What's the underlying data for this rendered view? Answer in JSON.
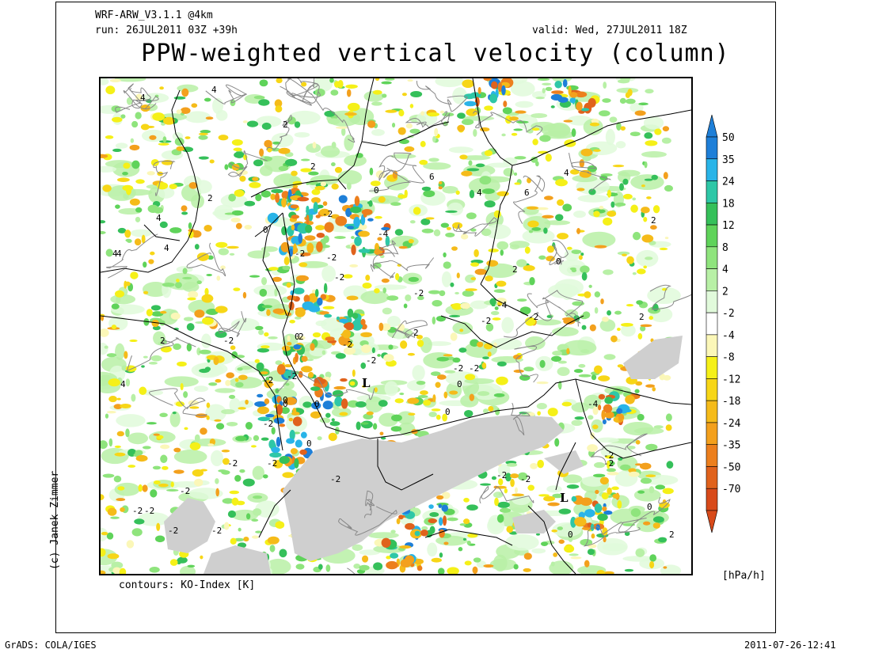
{
  "header": {
    "model": "WRF-ARW_V3.1.1 @4km",
    "run": "run: 26JUL2011 03Z +39h",
    "valid": "valid: Wed, 27JUL2011 18Z",
    "title": "PPW-weighted vertical velocity (column)"
  },
  "footer": {
    "contours": "contours: KO-Index [K]",
    "units": "[hPa/h]",
    "credit": "(c) Janek Zimmer",
    "software": "GrADS: COLA/IGES",
    "timestamp": "2011-07-26-12:41"
  },
  "colorbar": {
    "levels": [
      {
        "label": "50",
        "color": "#1e7fd8"
      },
      {
        "label": "35",
        "color": "#29b4e8"
      },
      {
        "label": "24",
        "color": "#2ec7a7"
      },
      {
        "label": "18",
        "color": "#35c05a"
      },
      {
        "label": "12",
        "color": "#5fd35a"
      },
      {
        "label": "8",
        "color": "#8fe47d"
      },
      {
        "label": "4",
        "color": "#b8f0a6"
      },
      {
        "label": "2",
        "color": "#e1fadb"
      },
      {
        "label": "-2",
        "color": "#ffffff"
      },
      {
        "label": "-4",
        "color": "#fbf7b8"
      },
      {
        "label": "-8",
        "color": "#f5f018"
      },
      {
        "label": "-12",
        "color": "#f7d617"
      },
      {
        "label": "-18",
        "color": "#f5bb1a"
      },
      {
        "label": "-24",
        "color": "#f3a01d"
      },
      {
        "label": "-35",
        "color": "#ec7f1d"
      },
      {
        "label": "-50",
        "color": "#e0621c"
      },
      {
        "label": "-70",
        "color": "#d84a1a"
      }
    ]
  },
  "map": {
    "contour_labels": [
      "4",
      "4",
      "2",
      "4",
      "2",
      "2",
      "4",
      "6",
      "4",
      "6",
      "4",
      "2",
      "0",
      "0",
      "-2",
      "-4",
      "-2",
      "-2",
      "-2",
      "-2",
      "0",
      "-2",
      "-2",
      "2",
      "2",
      "0",
      "0",
      "-2",
      "L",
      "-2",
      "-2",
      "0",
      "0",
      "0",
      "-2",
      "-4",
      "-2",
      "0",
      "-2",
      "-2",
      "2",
      "-2",
      "-4",
      "-2",
      "-2",
      "L",
      "0",
      "0",
      "2",
      "-2",
      "-2",
      "4",
      "4",
      "2",
      "4",
      "-2",
      "-2",
      "-2",
      "-2",
      "-2",
      "-2",
      "-2",
      "-2",
      "0",
      "2"
    ],
    "low_marker": "L",
    "terrain_color": "#cfcfcf",
    "border_color": "#000000",
    "contour_color": "#888888"
  }
}
